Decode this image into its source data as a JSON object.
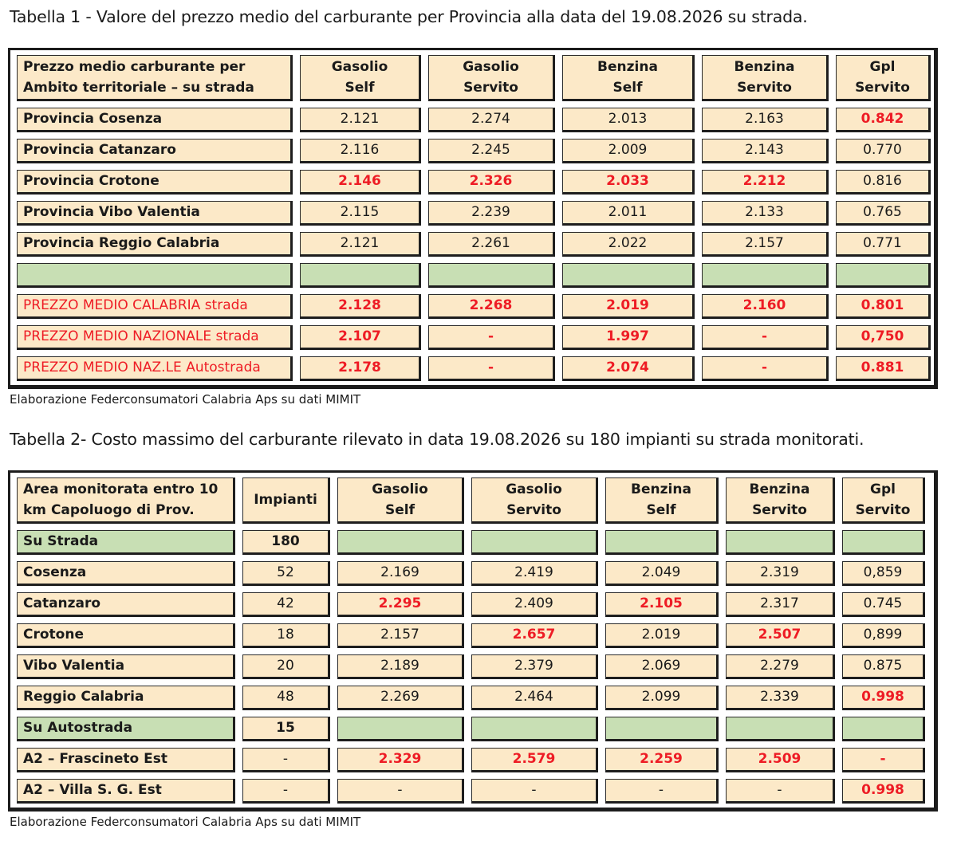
{
  "table1": {
    "title": "Tabella 1 - Valore del prezzo medio del carburante per Provincia alla data del 19.08.2026 su strada.",
    "headers": [
      "Prezzo medio carburante per\nAmbito territoriale – su strada",
      "Gasolio\nSelf",
      "Gasolio\nServito",
      "Benzina\nSelf",
      "Benzina\nServito",
      "Gpl\nServito"
    ],
    "rows": [
      {
        "label": "Provincia Cosenza",
        "values": [
          "2.121",
          "2.274",
          "2.013",
          "2.163",
          "0.842"
        ],
        "red": [
          false,
          false,
          false,
          false,
          true
        ]
      },
      {
        "label": "Provincia Catanzaro",
        "values": [
          "2.116",
          "2.245",
          "2.009",
          "2.143",
          "0.770"
        ],
        "red": [
          false,
          false,
          false,
          false,
          false
        ]
      },
      {
        "label": "Provincia Crotone",
        "values": [
          "2.146",
          "2.326",
          "2.033",
          "2.212",
          "0.816"
        ],
        "red": [
          true,
          true,
          true,
          true,
          false
        ]
      },
      {
        "label": "Provincia Vibo Valentia",
        "values": [
          "2.115",
          "2.239",
          "2.011",
          "2.133",
          "0.765"
        ],
        "red": [
          false,
          false,
          false,
          false,
          false
        ]
      },
      {
        "label": "Provincia Reggio Calabria",
        "values": [
          "2.121",
          "2.261",
          "2.022",
          "2.157",
          "0.771"
        ],
        "red": [
          false,
          false,
          false,
          false,
          false
        ]
      },
      {
        "label": "",
        "values": [
          "",
          "",
          "",
          "",
          ""
        ],
        "green": true
      },
      {
        "label": "PREZZO MEDIO CALABRIA   strada",
        "values": [
          "2.128",
          "2.268",
          "2.019",
          "2.160",
          "0.801"
        ],
        "red": [
          true,
          true,
          true,
          true,
          true
        ],
        "redLabel": true
      },
      {
        "label": "PREZZO MEDIO NAZIONALE  strada",
        "values": [
          "2.107",
          "-",
          "1.997",
          "-",
          "0,750"
        ],
        "red": [
          true,
          true,
          true,
          true,
          true
        ],
        "redLabel": true
      },
      {
        "label": "PREZZO MEDIO NAZ.LE Autostrada",
        "values": [
          "2.178",
          "-",
          "2.074",
          "-",
          "0.881"
        ],
        "red": [
          true,
          true,
          true,
          true,
          true
        ],
        "redLabel": true
      }
    ],
    "source": "Elaborazione Federconsumatori Calabria Aps su dati MIMIT"
  },
  "table2": {
    "title": "Tabella 2- Costo massimo del carburante rilevato in data 19.08.2026 su 180 impianti su strada monitorati.",
    "headers": [
      "Area monitorata entro 10\nkm Capoluogo di Prov.",
      "Impianti",
      "Gasolio\nSelf",
      "Gasolio\nServito",
      "Benzina\nSelf",
      "Benzina\nServito",
      "Gpl\nServito"
    ],
    "rows": [
      {
        "label": "Su Strada",
        "impianti": "180",
        "values": [
          "",
          "",
          "",
          "",
          ""
        ],
        "green": true
      },
      {
        "label": "Cosenza",
        "impianti": "52",
        "values": [
          "2.169",
          "2.419",
          "2.049",
          "2.319",
          "0,859"
        ],
        "red": [
          false,
          false,
          false,
          false,
          false
        ]
      },
      {
        "label": "Catanzaro",
        "impianti": "42",
        "values": [
          "2.295",
          "2.409",
          "2.105",
          "2.317",
          "0.745"
        ],
        "red": [
          true,
          false,
          true,
          false,
          false
        ]
      },
      {
        "label": "Crotone",
        "impianti": "18",
        "values": [
          "2.157",
          "2.657",
          "2.019",
          "2.507",
          "0,899"
        ],
        "red": [
          false,
          true,
          false,
          true,
          false
        ]
      },
      {
        "label": "Vibo Valentia",
        "impianti": "20",
        "values": [
          "2.189",
          "2.379",
          "2.069",
          "2.279",
          "0.875"
        ],
        "red": [
          false,
          false,
          false,
          false,
          false
        ]
      },
      {
        "label": "Reggio Calabria",
        "impianti": "48",
        "values": [
          "2.269",
          "2.464",
          "2.099",
          "2.339",
          "0.998"
        ],
        "red": [
          false,
          false,
          false,
          false,
          true
        ]
      },
      {
        "label": "Su Autostrada",
        "impianti": "15",
        "values": [
          "",
          "",
          "",
          "",
          ""
        ],
        "green": true
      },
      {
        "label": "A2 – Frascineto Est",
        "impianti": "-",
        "values": [
          "2.329",
          "2.579",
          "2.259",
          "2.509",
          "-"
        ],
        "red": [
          true,
          true,
          true,
          true,
          true
        ]
      },
      {
        "label": "A2 – Villa S. G. Est",
        "impianti": "-",
        "values": [
          "-",
          "-",
          "-",
          "-",
          "0.998"
        ],
        "red": [
          false,
          false,
          false,
          false,
          true
        ]
      }
    ],
    "source": "Elaborazione Federconsumatori Calabria Aps su dati MIMIT"
  }
}
